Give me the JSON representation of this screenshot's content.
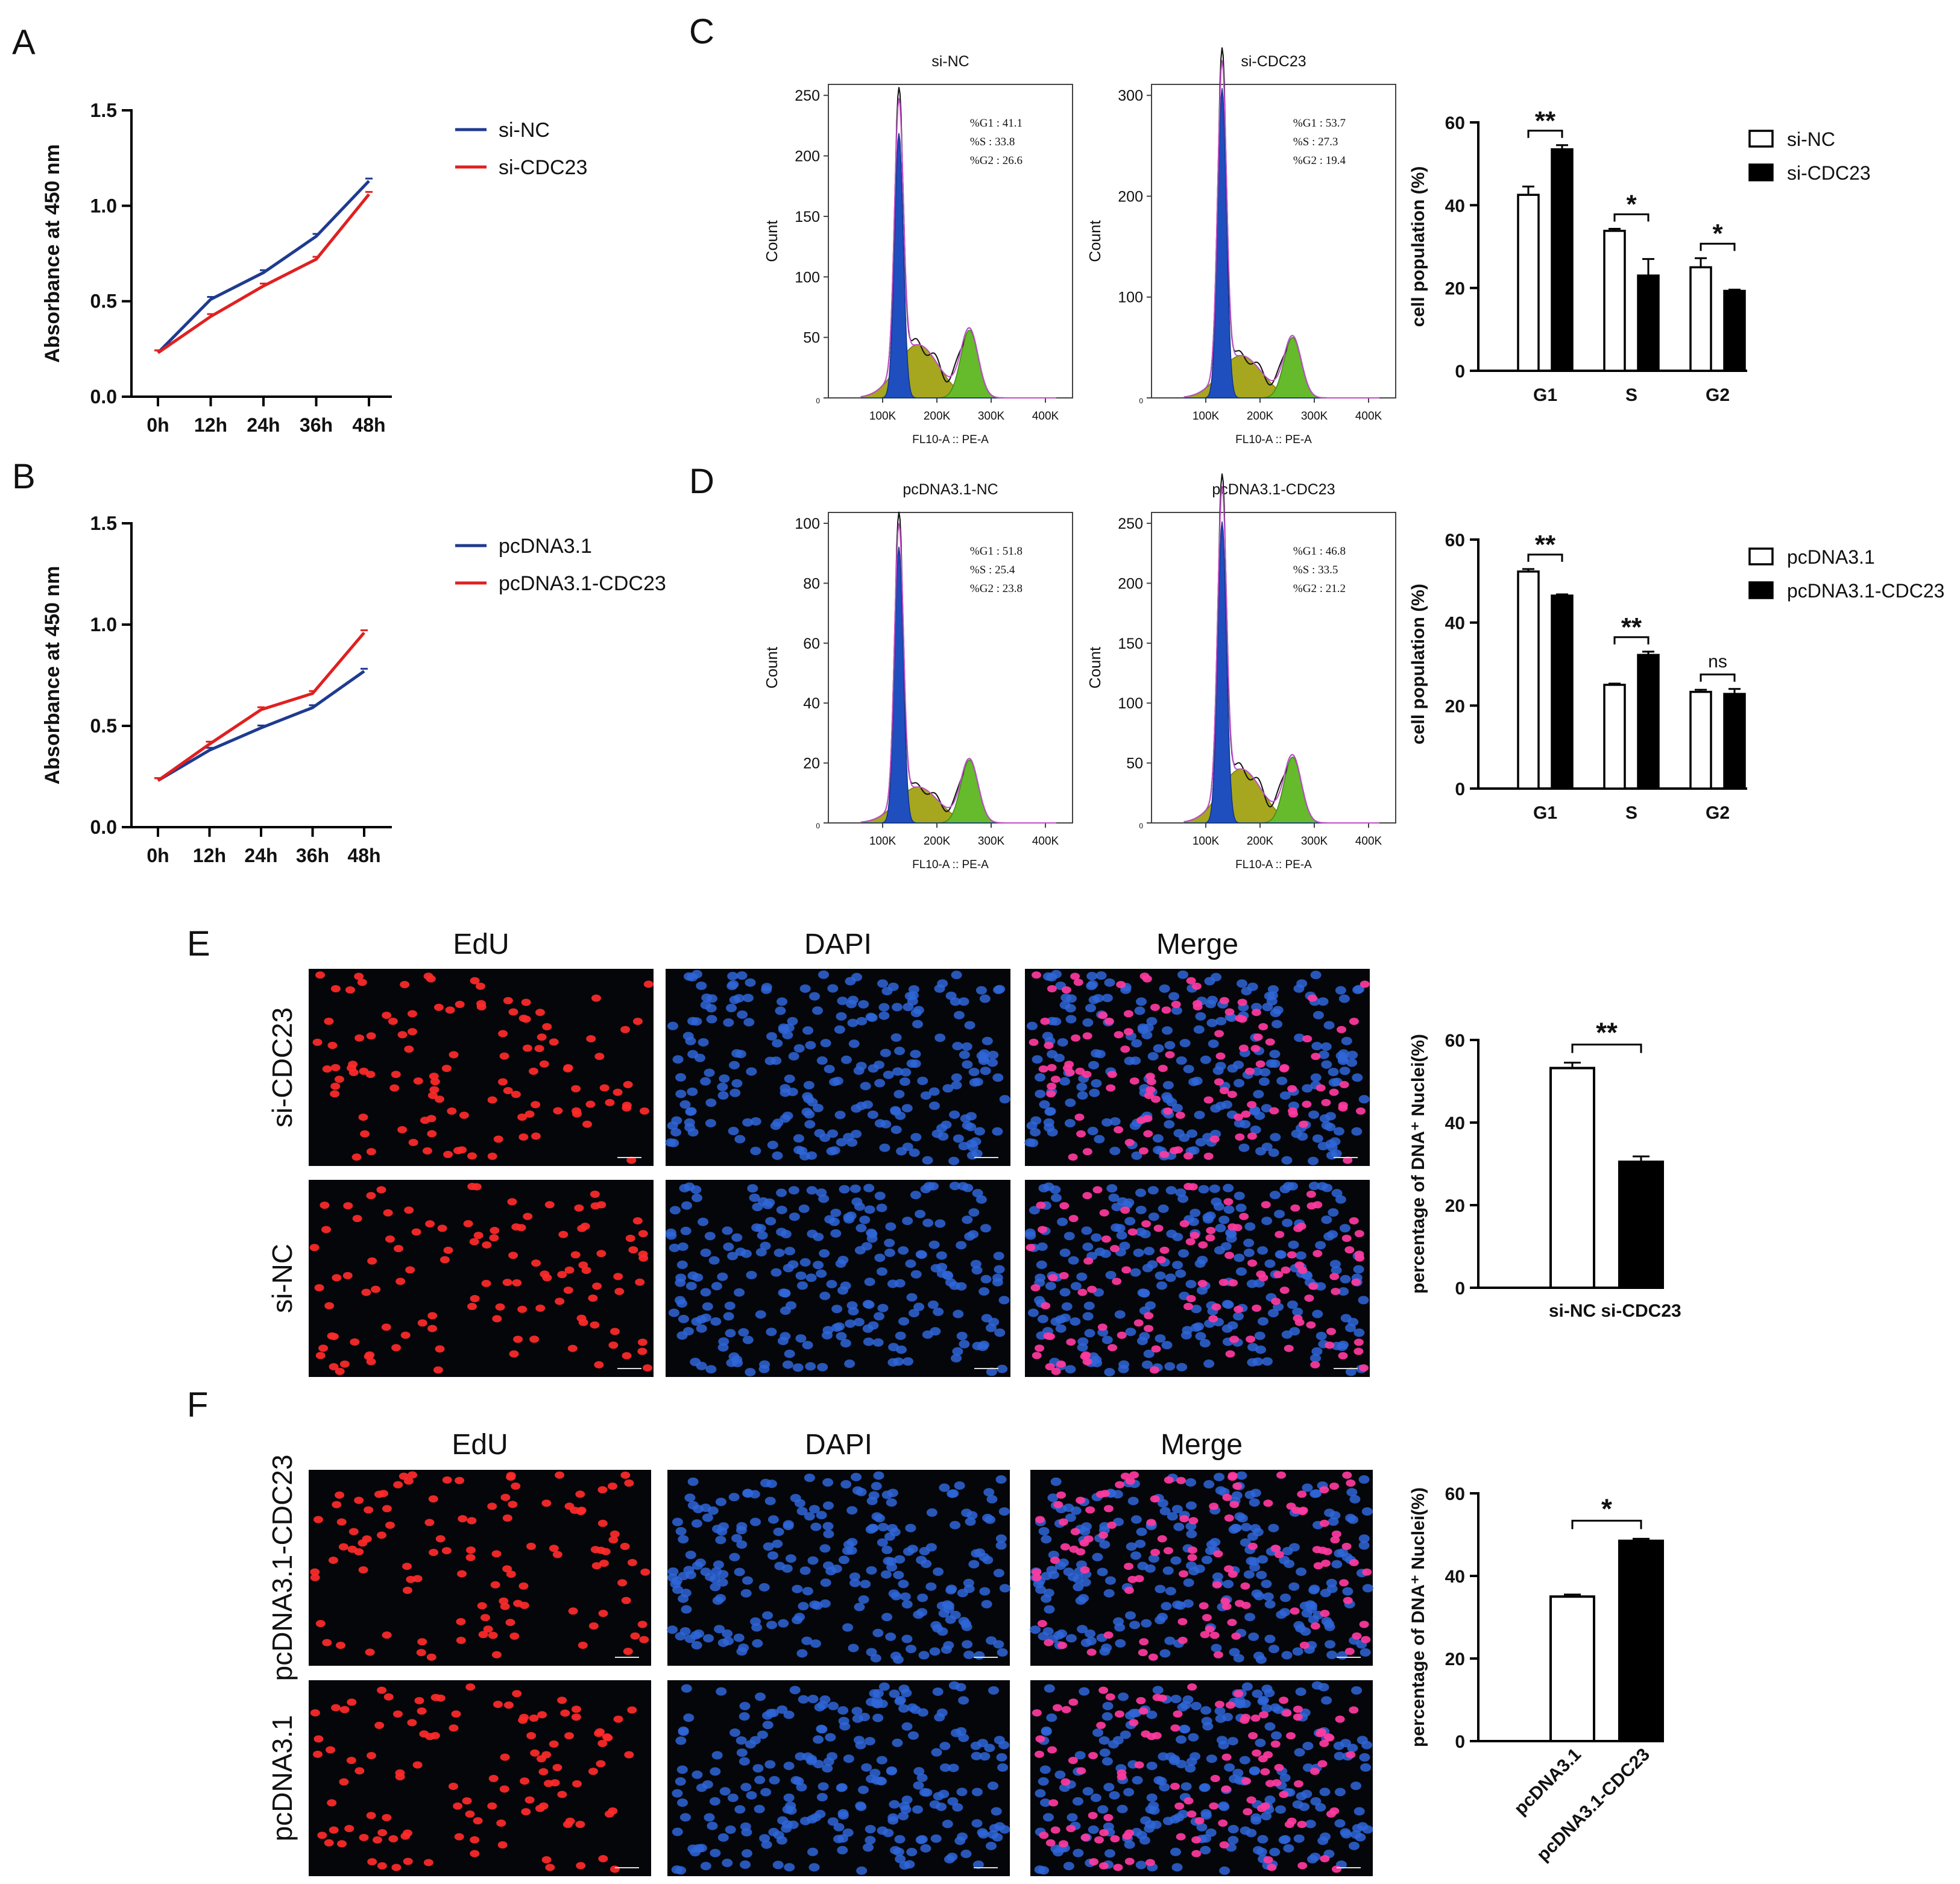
{
  "chart_data": [
    {
      "panel": "A",
      "type": "line",
      "x": [
        "0h",
        "12h",
        "24h",
        "36h",
        "48h"
      ],
      "series": [
        {
          "name": "si-NC",
          "color": "#1f3b8f",
          "values": [
            0.23,
            0.51,
            0.65,
            0.84,
            1.13
          ]
        },
        {
          "name": "si-CDC23",
          "color": "#e02020",
          "values": [
            0.23,
            0.42,
            0.58,
            0.72,
            1.06
          ]
        }
      ],
      "ylabel": "Absorbance at 450 nm",
      "ylim": [
        0,
        1.5
      ],
      "yticks": [
        "0.0",
        "0.5",
        "1.0",
        "1.5"
      ]
    },
    {
      "panel": "B",
      "type": "line",
      "x": [
        "0h",
        "12h",
        "24h",
        "36h",
        "48h"
      ],
      "series": [
        {
          "name": "pcDNA3.1",
          "color": "#1f3b8f",
          "values": [
            0.23,
            0.38,
            0.49,
            0.59,
            0.77
          ]
        },
        {
          "name": "pcDNA3.1-CDC23",
          "color": "#e02020",
          "values": [
            0.23,
            0.41,
            0.58,
            0.66,
            0.96
          ]
        }
      ],
      "ylabel": "Absorbance at 450 nm",
      "ylim": [
        0,
        1.5
      ],
      "yticks": [
        "0.0",
        "0.5",
        "1.0",
        "1.5"
      ]
    },
    {
      "panel": "C",
      "type": "area",
      "title": "si-NC",
      "ymax": 250,
      "yticks": [
        "0",
        "50",
        "100",
        "150",
        "200",
        "250"
      ],
      "xticks": [
        "100K",
        "200K",
        "300K",
        "400K"
      ],
      "xlabel": "FL10-A :: PE-A",
      "ylabel": "Count",
      "stats": [
        "%G1 : 41.1",
        "%S : 33.8",
        "%G2 : 26.6"
      ],
      "g1_peak": 228,
      "g2_peak": 56,
      "s_peak": 44
    },
    {
      "panel": "C",
      "type": "area",
      "title": "si-CDC23",
      "ymax": 300,
      "yticks": [
        "0",
        "100",
        "200",
        "300"
      ],
      "xticks": [
        "100K",
        "200K",
        "300K",
        "400K"
      ],
      "xlabel": "FL10-A :: PE-A",
      "ylabel": "Count",
      "stats": [
        "%G1 : 53.7",
        "%S : 27.3",
        "%G2 : 19.4"
      ],
      "g1_peak": 320,
      "g2_peak": 60,
      "s_peak": 42
    },
    {
      "panel": "C",
      "type": "bar",
      "categories": [
        "G1",
        "S",
        "G2"
      ],
      "series": [
        {
          "name": "si-NC",
          "values": [
            42.5,
            33.8,
            25.0
          ],
          "errors": [
            2.0,
            0.5,
            2.2
          ]
        },
        {
          "name": "si-CDC23",
          "values": [
            53.5,
            23.0,
            19.3
          ],
          "errors": [
            1.0,
            4.0,
            0.3
          ]
        }
      ],
      "significance": [
        "**",
        "*",
        "*"
      ],
      "ylabel": "cell population (%)",
      "ylim": [
        0,
        60
      ],
      "yticks": [
        "0",
        "20",
        "40",
        "60"
      ]
    },
    {
      "panel": "D",
      "type": "area",
      "title": "pcDNA3.1-NC",
      "ymax": 100,
      "yticks": [
        "0",
        "20",
        "40",
        "60",
        "80",
        "100"
      ],
      "xticks": [
        "100K",
        "200K",
        "300K",
        "400K"
      ],
      "xlabel": "FL10-A :: PE-A",
      "ylabel": "Count",
      "stats": [
        "%G1 : 51.8",
        "%S : 25.4",
        "%G2 : 23.8"
      ],
      "g1_peak": 96,
      "g2_peak": 21,
      "s_peak": 12
    },
    {
      "panel": "D",
      "type": "area",
      "title": "pcDNA3.1-CDC23",
      "ymax": 250,
      "yticks": [
        "0",
        "50",
        "100",
        "150",
        "200",
        "250"
      ],
      "xticks": [
        "100K",
        "200K",
        "300K",
        "400K"
      ],
      "xlabel": "FL10-A :: PE-A",
      "ylabel": "Count",
      "stats": [
        "%G1 : 46.8",
        "%S : 33.5",
        "%G2 : 21.2"
      ],
      "g1_peak": 262,
      "g2_peak": 55,
      "s_peak": 45
    },
    {
      "panel": "D",
      "type": "bar",
      "categories": [
        "G1",
        "S",
        "G2"
      ],
      "series": [
        {
          "name": "pcDNA3.1",
          "values": [
            52.3,
            25.0,
            23.3
          ],
          "errors": [
            0.6,
            0.3,
            0.5
          ]
        },
        {
          "name": "pcDNA3.1-CDC23",
          "values": [
            46.5,
            32.2,
            22.8
          ],
          "errors": [
            0.3,
            0.8,
            1.2
          ]
        }
      ],
      "significance": [
        "**",
        "**",
        "ns"
      ],
      "ylabel": "cell population (%)",
      "ylim": [
        0,
        60
      ],
      "yticks": [
        "0",
        "20",
        "40",
        "60"
      ]
    },
    {
      "panel": "E",
      "type": "bar",
      "categories": [
        "si-NC",
        "si-CDC23"
      ],
      "values": [
        53.2,
        30.5
      ],
      "errors": [
        1.3,
        1.3
      ],
      "fills": [
        "#ffffff",
        "#000000"
      ],
      "significance": "**",
      "ylabel": "percentage of DNA⁺ Nuclei(%)",
      "ylim": [
        0,
        60
      ],
      "yticks": [
        "0",
        "20",
        "40",
        "60"
      ]
    },
    {
      "panel": "F",
      "type": "bar",
      "categories": [
        "pcDNA3.1",
        "pcDNA3.1-CDC23"
      ],
      "values": [
        35.0,
        48.5
      ],
      "errors": [
        0.5,
        0.5
      ],
      "fills": [
        "#ffffff",
        "#000000"
      ],
      "significance": "*",
      "ylabel": "percentage of DNA⁺ Nuclei(%)",
      "ylim": [
        0,
        60
      ],
      "yticks": [
        "0",
        "20",
        "40",
        "60"
      ]
    }
  ],
  "panel_letters": [
    "A",
    "B",
    "C",
    "D",
    "E",
    "F"
  ],
  "microscopy": {
    "E": {
      "columns": [
        "EdU",
        "DAPI",
        "Merge"
      ],
      "rows": [
        "si-CDC23",
        "si-NC"
      ]
    },
    "F": {
      "columns": [
        "EdU",
        "DAPI",
        "Merge"
      ],
      "rows": [
        "pcDNA3.1-CDC23",
        "pcDNA3.1"
      ]
    },
    "colors": {
      "edu": "#ff2a2a",
      "dapi": "#2f66d8",
      "merge": "#ff3aa0",
      "background": "#05060a"
    }
  }
}
